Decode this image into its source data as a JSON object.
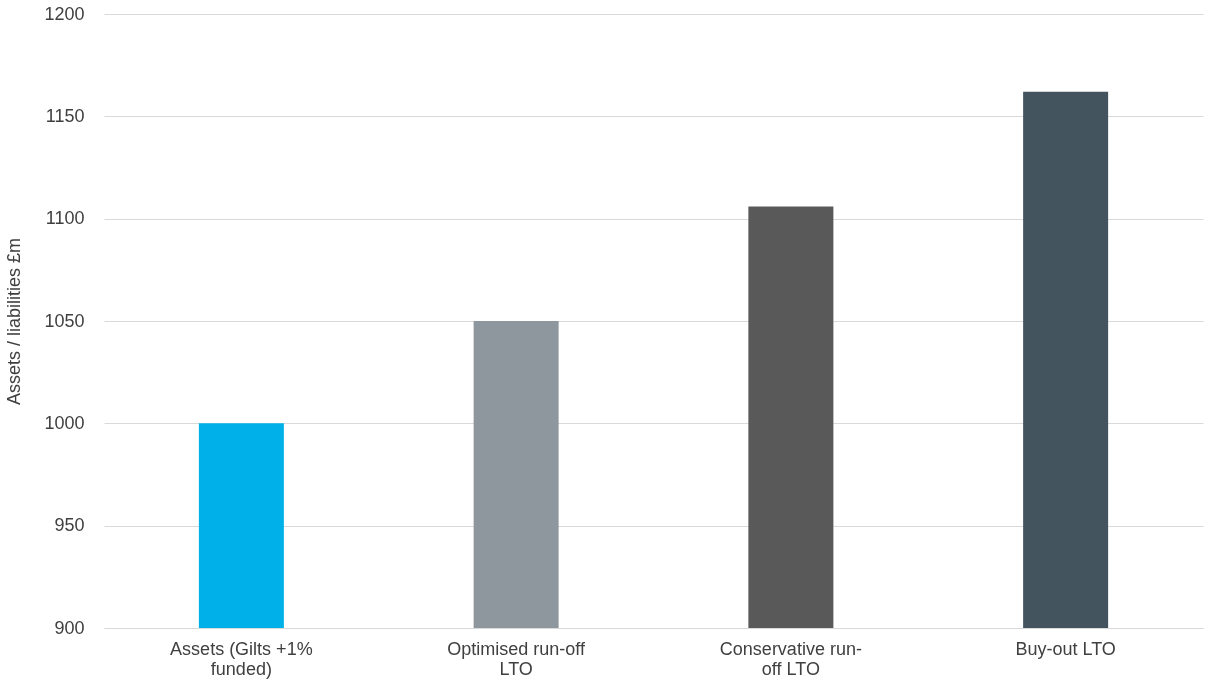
{
  "chart_data": {
    "type": "bar",
    "categories": [
      "Assets (Gilts +1% funded)",
      "Optimised run-off LTO",
      "Conservative run-off LTO",
      "Buy-out LTO"
    ],
    "values": [
      1000,
      1050,
      1106,
      1162
    ],
    "colors": [
      "#00b0e8",
      "#8f979e",
      "#595959",
      "#44545e"
    ],
    "ylabel": "Assets / liabilities £m",
    "ylim": [
      900,
      1200
    ],
    "yticks": [
      900,
      950,
      1000,
      1050,
      1100,
      1150,
      1200
    ],
    "grid": "y",
    "legend": false
  }
}
